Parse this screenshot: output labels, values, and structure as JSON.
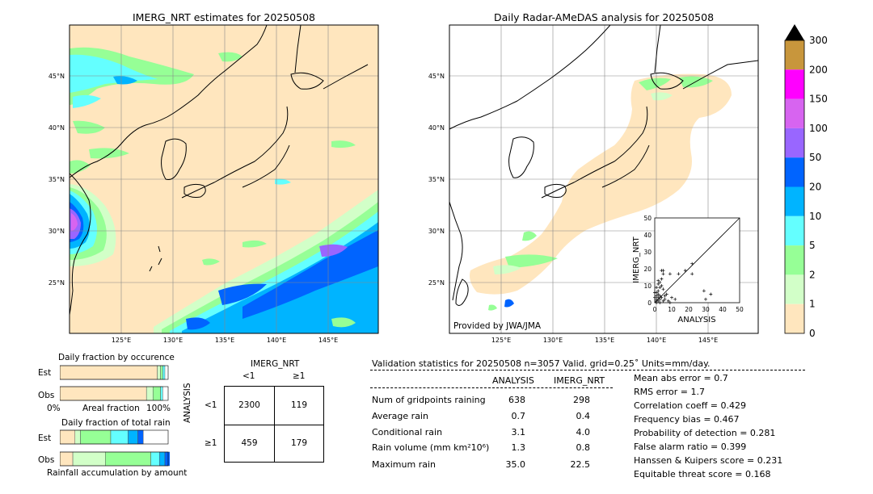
{
  "left_map": {
    "title": "IMERG_NRT estimates for 20250508",
    "lat_labels": [
      "45°N",
      "40°N",
      "35°N",
      "30°N",
      "25°N"
    ],
    "lon_labels": [
      "125°E",
      "130°E",
      "135°E",
      "140°E",
      "145°E"
    ]
  },
  "right_map": {
    "title": "Daily Radar-AMeDAS analysis for 20250508",
    "lat_labels": [
      "45°N",
      "40°N",
      "35°N",
      "30°N",
      "25°N"
    ],
    "lon_labels": [
      "125°E",
      "130°E",
      "135°E",
      "140°E",
      "145°E"
    ],
    "credit": "Provided by JWA/JMA"
  },
  "colorbar": {
    "labels": [
      "300",
      "200",
      "150",
      "100",
      "50",
      "20",
      "10",
      "5",
      "2",
      "1",
      "0"
    ],
    "colors": [
      "#c8963c",
      "#ff00ff",
      "#d764f0",
      "#9966ff",
      "#0064ff",
      "#00b4ff",
      "#64ffff",
      "#96ff96",
      "#d2ffc8",
      "#ffe6be"
    ]
  },
  "scatter": {
    "xlabel": "ANALYSIS",
    "ylabel": "IMERG_NRT",
    "ticks": [
      "0",
      "10",
      "20",
      "30",
      "40",
      "50"
    ]
  },
  "chart_data": {
    "type": "scatter",
    "xlabel": "ANALYSIS",
    "ylabel": "IMERG_NRT",
    "xlim": [
      0,
      50
    ],
    "ylim": [
      0,
      50
    ],
    "points": [
      [
        1,
        1
      ],
      [
        1,
        2
      ],
      [
        2,
        1
      ],
      [
        2,
        3
      ],
      [
        3,
        2
      ],
      [
        1,
        4
      ],
      [
        2,
        5
      ],
      [
        3,
        4
      ],
      [
        4,
        3
      ],
      [
        1,
        6
      ],
      [
        2,
        7
      ],
      [
        3,
        9
      ],
      [
        4,
        10
      ],
      [
        5,
        8
      ],
      [
        6,
        4
      ],
      [
        2,
        11
      ],
      [
        3,
        12
      ],
      [
        4,
        14
      ],
      [
        5,
        17
      ],
      [
        4,
        19
      ],
      [
        5,
        19
      ],
      [
        9,
        17
      ],
      [
        14,
        17
      ],
      [
        18,
        19
      ],
      [
        22,
        23
      ],
      [
        22,
        17
      ],
      [
        29,
        7
      ],
      [
        33,
        5
      ],
      [
        30,
        2
      ],
      [
        6,
        2
      ],
      [
        8,
        1
      ],
      [
        10,
        3
      ],
      [
        12,
        2
      ],
      [
        7,
        5
      ],
      [
        1,
        0
      ],
      [
        3,
        0
      ],
      [
        5,
        1
      ],
      [
        9,
        0
      ],
      [
        0,
        3
      ],
      [
        0,
        6
      ],
      [
        1,
        9
      ],
      [
        2,
        13
      ]
    ]
  },
  "fraction_occurrence": {
    "title": "Daily fraction by occurence",
    "rows": [
      "Est",
      "Obs"
    ],
    "xlabel_left": "0%",
    "xlabel_mid": "Areal fraction",
    "xlabel_right": "100%",
    "est_segments": [
      0.9,
      0.03,
      0.02,
      0.02
    ],
    "obs_segments": [
      0.8,
      0.06,
      0.07,
      0.02
    ]
  },
  "fraction_rain": {
    "title": "Daily fraction of total rain",
    "rows": [
      "Est",
      "Obs"
    ],
    "xlabel": "Rainfall accumulation by amount",
    "est_segments": [
      0.14,
      0.05,
      0.28,
      0.16,
      0.09,
      0.05
    ],
    "obs_segments": [
      0.12,
      0.3,
      0.42,
      0.08,
      0.05,
      0.06
    ]
  },
  "contingency": {
    "col_title": "IMERG_NRT",
    "row_title": "ANALYSIS",
    "col_labels": [
      "<1",
      "≥1"
    ],
    "row_labels": [
      "<1",
      "≥1"
    ],
    "cells": [
      [
        "2300",
        "119"
      ],
      [
        "459",
        "179"
      ]
    ]
  },
  "stats": {
    "header": "Validation statistics for 20250508  n=3057 Valid. grid=0.25˚ Units=mm/day.",
    "col_analysis": "ANALYSIS",
    "col_imerg": "IMERG_NRT",
    "rows": [
      {
        "label": "Num of gridpoints raining",
        "analysis": "638",
        "imerg": "298"
      },
      {
        "label": "Average rain",
        "analysis": "0.7",
        "imerg": "0.4"
      },
      {
        "label": "Conditional rain",
        "analysis": "3.1",
        "imerg": "4.0"
      },
      {
        "label": "Rain volume (mm km²10⁶)",
        "analysis": "1.3",
        "imerg": "0.8"
      },
      {
        "label": "Maximum rain",
        "analysis": "35.0",
        "imerg": "22.5"
      }
    ],
    "scores": [
      "Mean abs error =    0.7",
      "RMS error =    1.7",
      "Correlation coeff =  0.429",
      "Frequency bias =  0.467",
      "Probability of detection =  0.281",
      "False alarm ratio =  0.399",
      "Hanssen & Kuipers score =  0.231",
      "Equitable threat score =  0.168"
    ]
  }
}
